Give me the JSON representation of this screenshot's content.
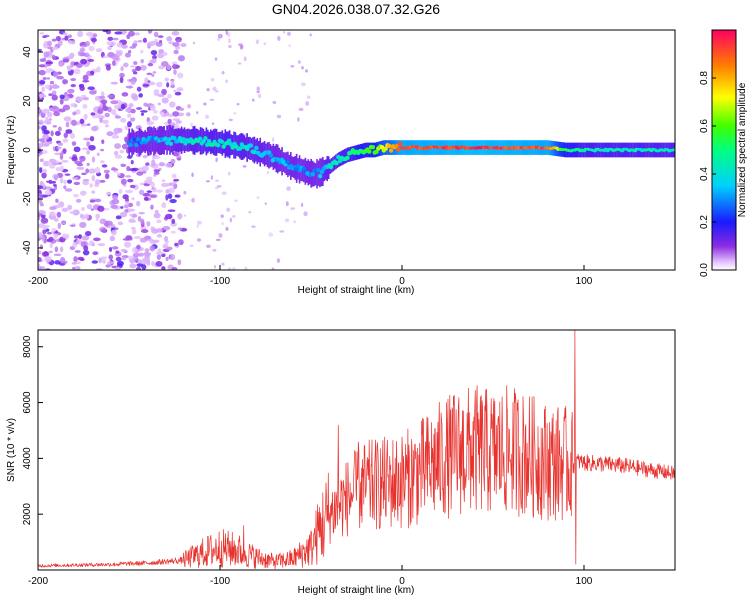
{
  "title": "GN04.2026.038.07.32.G26",
  "chart_data": [
    {
      "type": "heatmap",
      "name": "spectrogram",
      "xlabel": "Height of straight line (km)",
      "ylabel": "Frequency (Hz)",
      "xlim": [
        -200,
        150
      ],
      "ylim": [
        -49,
        49
      ],
      "xticks": [
        -200,
        -100,
        0,
        100
      ],
      "yticks": [
        -40,
        -20,
        0,
        20,
        40
      ],
      "colorbar": {
        "label": "Normalized spectral amplitude",
        "range": [
          0,
          1
        ],
        "ticks": [
          0.0,
          0.2,
          0.4,
          0.6,
          0.8
        ]
      },
      "ridge": {
        "heights_km": [
          -150,
          -130,
          -115,
          -100,
          -85,
          -70,
          -60,
          -52,
          -48,
          -44,
          -40,
          -35,
          -30,
          -25,
          -20,
          -15,
          -10,
          -5,
          0,
          20,
          40,
          60,
          80,
          90,
          100,
          150
        ],
        "frequency_hz": [
          3,
          4,
          4,
          3,
          1,
          -3,
          -7,
          -9,
          -10,
          -9,
          -7,
          -4,
          -2,
          -1,
          0,
          0,
          1,
          1,
          1,
          1,
          1,
          1,
          1,
          0,
          0,
          0
        ],
        "amplitude": [
          0.25,
          0.35,
          0.4,
          0.42,
          0.4,
          0.35,
          0.3,
          0.28,
          0.3,
          0.35,
          0.4,
          0.42,
          0.45,
          0.5,
          0.55,
          0.6,
          0.7,
          0.8,
          0.9,
          0.92,
          0.95,
          0.92,
          0.9,
          0.55,
          0.45,
          0.42
        ]
      }
    },
    {
      "type": "line",
      "name": "snr",
      "xlabel": "Height of straight line (km)",
      "ylabel": "SNR (10 * v/v)",
      "xlim": [
        -200,
        150
      ],
      "ylim": [
        0,
        8600
      ],
      "xticks": [
        -200,
        -100,
        0,
        100
      ],
      "yticks": [
        2000,
        4000,
        6000,
        8000
      ],
      "color": "#e8322e",
      "envelope": {
        "x": [
          -200,
          -160,
          -140,
          -120,
          -110,
          -100,
          -90,
          -80,
          -70,
          -60,
          -50,
          -45,
          -40,
          -30,
          -20,
          -10,
          0,
          10,
          20,
          30,
          40,
          50,
          60,
          70,
          80,
          90,
          94,
          95,
          96,
          100,
          110,
          120,
          130,
          140,
          150
        ],
        "y": [
          150,
          200,
          250,
          350,
          600,
          800,
          700,
          450,
          300,
          400,
          800,
          1500,
          2000,
          2600,
          3000,
          3100,
          3200,
          3500,
          3900,
          4200,
          4300,
          4200,
          4300,
          4100,
          3900,
          3800,
          3700,
          3800,
          3900,
          3850,
          3800,
          3750,
          3650,
          3550,
          3450
        ]
      },
      "spikes": [
        {
          "x": -87,
          "y": 1600
        },
        {
          "x": -35,
          "y": 5200
        },
        {
          "x": -24,
          "y": 4600
        },
        {
          "x": 62,
          "y": 6000
        },
        {
          "x": 95,
          "y": 8600
        },
        {
          "x": 95.5,
          "y": 200
        }
      ]
    }
  ]
}
